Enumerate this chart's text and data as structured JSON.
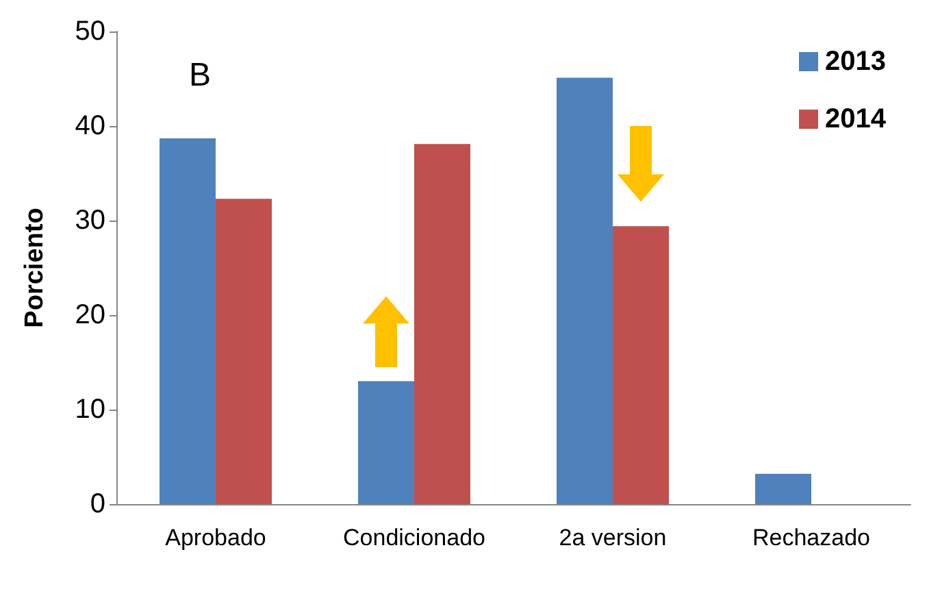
{
  "chart_data": {
    "type": "bar",
    "ylabel": "Porciento",
    "categories": [
      "Aprobado",
      "Condicionado",
      "2a version",
      "Rechazado"
    ],
    "series": [
      {
        "name": "2013",
        "color": "#4f81bd",
        "values": [
          38.7,
          13.0,
          45.1,
          3.2
        ]
      },
      {
        "name": "2014",
        "color": "#c0504d",
        "values": [
          32.3,
          38.1,
          29.4,
          null
        ]
      }
    ],
    "ylim": [
      0,
      50
    ],
    "yticks": [
      0,
      10,
      20,
      30,
      40,
      50
    ],
    "grid": false,
    "legend": "top right",
    "annotations": [
      "B"
    ]
  }
}
